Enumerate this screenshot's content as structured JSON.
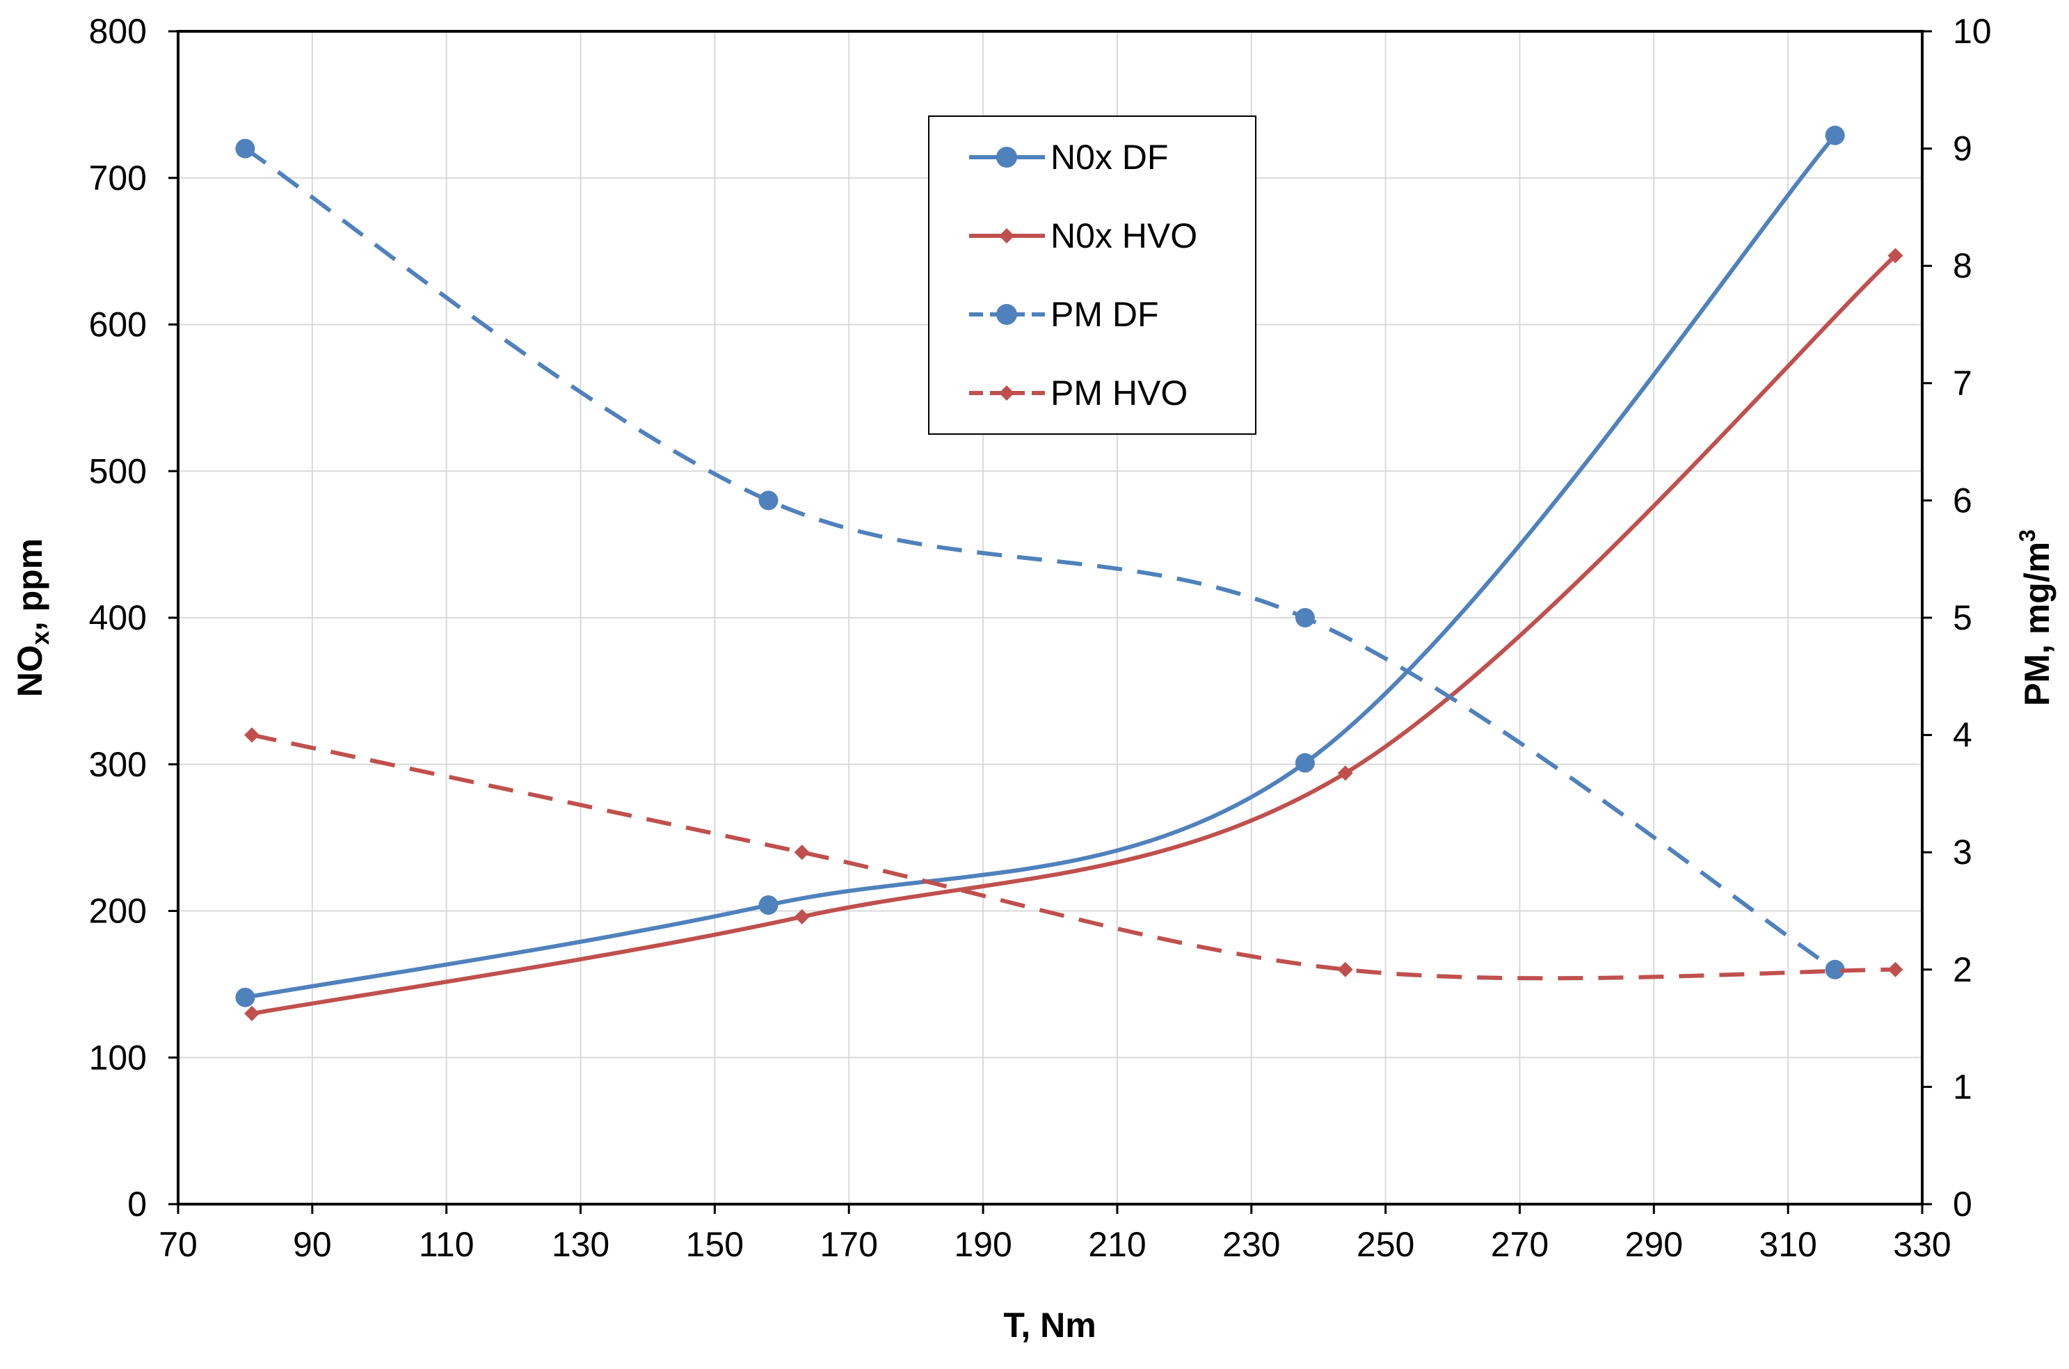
{
  "chart_data": {
    "type": "line",
    "title": "",
    "xlabel": "T, Nm",
    "ylabel_left": {
      "main": "NO",
      "sub": "x",
      "rest": ", ppm"
    },
    "ylabel_right": {
      "main": "PM, mg/m",
      "sup": "3"
    },
    "xlim": [
      70,
      330
    ],
    "ylim_left": [
      0,
      800
    ],
    "ylim_right": [
      0,
      10
    ],
    "x_ticks": [
      70,
      90,
      110,
      130,
      150,
      170,
      190,
      210,
      230,
      250,
      270,
      290,
      310,
      330
    ],
    "y_left_ticks": [
      0,
      100,
      200,
      300,
      400,
      500,
      600,
      700,
      800
    ],
    "y_right_ticks": [
      0,
      1,
      2,
      3,
      4,
      5,
      6,
      7,
      8,
      9,
      10
    ],
    "grid": true,
    "legend_position": "top-center",
    "series": [
      {
        "name": "N0x DF",
        "axis": "left",
        "color": "#4f81bd",
        "dash": "solid",
        "marker": "circle",
        "x": [
          80,
          158,
          238,
          317
        ],
        "y": [
          141,
          204,
          301,
          729
        ]
      },
      {
        "name": "N0x HVO",
        "axis": "left",
        "color": "#c0504d",
        "dash": "solid",
        "marker": "diamond",
        "x": [
          81,
          163,
          244,
          326
        ],
        "y": [
          130,
          196,
          294,
          647
        ]
      },
      {
        "name": "PM DF",
        "axis": "right",
        "color": "#4f81bd",
        "dash": "dashed",
        "marker": "circle",
        "x": [
          80,
          158,
          238,
          317
        ],
        "y": [
          9.0,
          6.0,
          5.0,
          2.0
        ]
      },
      {
        "name": "PM HVO",
        "axis": "right",
        "color": "#c0504d",
        "dash": "dashed",
        "marker": "diamond",
        "x": [
          81,
          163,
          244,
          326
        ],
        "y": [
          4.0,
          3.0,
          2.0,
          2.0
        ]
      }
    ]
  }
}
